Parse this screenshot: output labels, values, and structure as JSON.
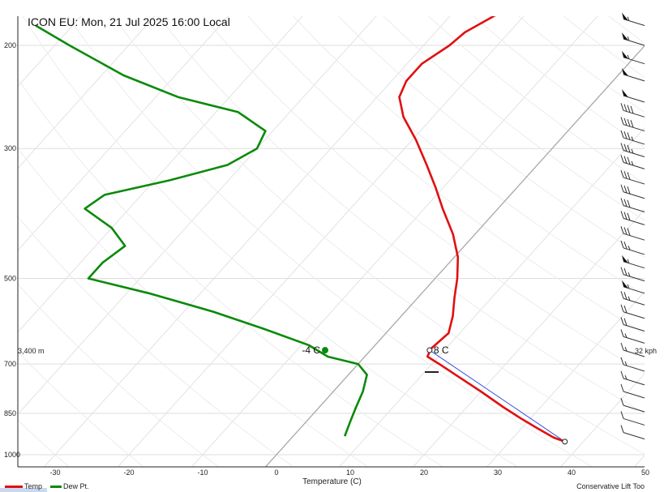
{
  "header": {
    "title": "ICON EU: Mon, 21 Jul 2025 16:00 Local"
  },
  "chart_data": {
    "type": "skew-t",
    "xlabel": "Temperature (C)",
    "x_ticks": [
      -30,
      -20,
      -10,
      0,
      10,
      20,
      30,
      40,
      50
    ],
    "p_ticks": [
      200,
      300,
      500,
      700,
      850,
      1000
    ],
    "xlim": [
      -35,
      50
    ],
    "plim": [
      1000,
      175
    ],
    "grid": true,
    "series": [
      {
        "name": "Temp",
        "color": "#e01010",
        "points": [
          {
            "p": 175,
            "t": -23.5
          },
          {
            "p": 190,
            "t": -26
          },
          {
            "p": 200,
            "t": -26.5
          },
          {
            "p": 215,
            "t": -28
          },
          {
            "p": 230,
            "t": -28
          },
          {
            "p": 245,
            "t": -27
          },
          {
            "p": 265,
            "t": -24
          },
          {
            "p": 290,
            "t": -19.5
          },
          {
            "p": 320,
            "t": -15
          },
          {
            "p": 350,
            "t": -11
          },
          {
            "p": 380,
            "t": -7.5
          },
          {
            "p": 420,
            "t": -3
          },
          {
            "p": 460,
            "t": 0.5
          },
          {
            "p": 500,
            "t": 3
          },
          {
            "p": 540,
            "t": 5
          },
          {
            "p": 580,
            "t": 7
          },
          {
            "p": 620,
            "t": 8.5
          },
          {
            "p": 660,
            "t": 8
          },
          {
            "p": 680,
            "t": 8.5
          },
          {
            "p": 700,
            "t": 11
          },
          {
            "p": 730,
            "t": 14.5
          },
          {
            "p": 780,
            "t": 20
          },
          {
            "p": 830,
            "t": 25
          },
          {
            "p": 870,
            "t": 29
          },
          {
            "p": 900,
            "t": 32
          },
          {
            "p": 935,
            "t": 35.5
          },
          {
            "p": 950,
            "t": 37.5
          }
        ]
      },
      {
        "name": "Dew Pt.",
        "color": "#0a8a0a",
        "points": [
          {
            "p": 185,
            "t": -85
          },
          {
            "p": 200,
            "t": -78
          },
          {
            "p": 225,
            "t": -67
          },
          {
            "p": 245,
            "t": -57
          },
          {
            "p": 260,
            "t": -47
          },
          {
            "p": 280,
            "t": -41
          },
          {
            "p": 300,
            "t": -40
          },
          {
            "p": 320,
            "t": -42
          },
          {
            "p": 340,
            "t": -48
          },
          {
            "p": 360,
            "t": -55
          },
          {
            "p": 380,
            "t": -56
          },
          {
            "p": 410,
            "t": -50
          },
          {
            "p": 440,
            "t": -46
          },
          {
            "p": 470,
            "t": -47
          },
          {
            "p": 500,
            "t": -47
          },
          {
            "p": 530,
            "t": -37
          },
          {
            "p": 570,
            "t": -26
          },
          {
            "p": 610,
            "t": -17
          },
          {
            "p": 650,
            "t": -9
          },
          {
            "p": 680,
            "t": -5
          },
          {
            "p": 700,
            "t": 0
          },
          {
            "p": 730,
            "t": 2.5
          },
          {
            "p": 780,
            "t": 4
          },
          {
            "p": 830,
            "t": 5
          },
          {
            "p": 880,
            "t": 6
          },
          {
            "p": 930,
            "t": 7
          }
        ]
      }
    ],
    "lift_path": {
      "from": {
        "p": 950,
        "t": 37.5
      },
      "to": {
        "p": 663,
        "t": 8
      }
    },
    "annotations": {
      "temp_point": {
        "p": 663,
        "t": 8,
        "label": "8 C"
      },
      "dew_point": {
        "p": 663,
        "t": -4,
        "label": "-4 C"
      },
      "left_height": "3,400 m",
      "right_wind": "32 kph"
    },
    "wind_barbs": [
      {
        "p": 185,
        "kt": 55
      },
      {
        "p": 200,
        "kt": 55
      },
      {
        "p": 215,
        "kt": 55
      },
      {
        "p": 230,
        "kt": 50
      },
      {
        "p": 250,
        "kt": 50
      },
      {
        "p": 265,
        "kt": 40
      },
      {
        "p": 280,
        "kt": 40
      },
      {
        "p": 295,
        "kt": 35
      },
      {
        "p": 310,
        "kt": 35
      },
      {
        "p": 325,
        "kt": 35
      },
      {
        "p": 345,
        "kt": 30
      },
      {
        "p": 365,
        "kt": 30
      },
      {
        "p": 385,
        "kt": 30
      },
      {
        "p": 405,
        "kt": 30
      },
      {
        "p": 430,
        "kt": 30
      },
      {
        "p": 455,
        "kt": 25
      },
      {
        "p": 480,
        "kt": 55
      },
      {
        "p": 505,
        "kt": 25
      },
      {
        "p": 530,
        "kt": 55
      },
      {
        "p": 555,
        "kt": 25
      },
      {
        "p": 585,
        "kt": 20
      },
      {
        "p": 615,
        "kt": 20
      },
      {
        "p": 645,
        "kt": 15
      },
      {
        "p": 680,
        "kt": 15
      },
      {
        "p": 720,
        "kt": 15
      },
      {
        "p": 760,
        "kt": 15
      },
      {
        "p": 800,
        "kt": 10
      },
      {
        "p": 845,
        "kt": 10
      },
      {
        "p": 890,
        "kt": 10
      },
      {
        "p": 940,
        "kt": 10
      }
    ]
  },
  "legend": [
    {
      "label": "Temp",
      "color": "#e01010"
    },
    {
      "label": "Dew Pt.",
      "color": "#0a8a0a"
    }
  ],
  "footer": {
    "right_label": "Conservative Lift Too"
  }
}
